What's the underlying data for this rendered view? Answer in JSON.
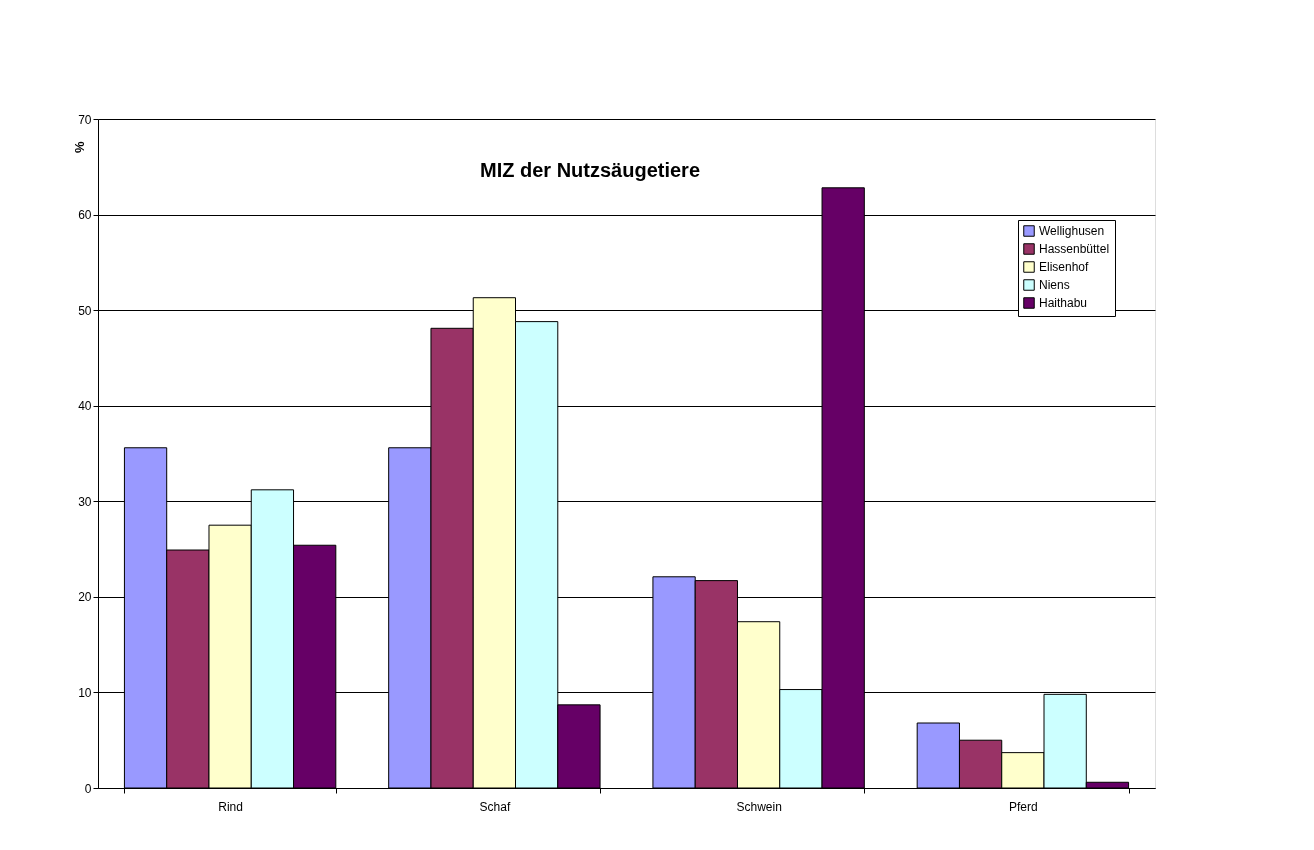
{
  "chart_data": {
    "type": "bar",
    "title": "MIZ der Nutzsäugetiere",
    "ylabel": "%",
    "categories": [
      "Rind",
      "Schaf",
      "Schwein",
      "Pferd"
    ],
    "series": [
      {
        "name": "Wellighusen",
        "color": "#9999ff",
        "values": [
          35.6,
          35.6,
          22.1,
          6.8
        ]
      },
      {
        "name": "Hassenbüttel",
        "color": "#993366",
        "values": [
          24.9,
          48.1,
          21.7,
          5.0
        ]
      },
      {
        "name": "Elisenhof",
        "color": "#ffffcc",
        "values": [
          27.5,
          51.3,
          17.4,
          3.7
        ]
      },
      {
        "name": "Niens",
        "color": "#ccffff",
        "values": [
          31.2,
          48.8,
          10.3,
          9.8
        ]
      },
      {
        "name": "Haithabu",
        "color": "#660066",
        "values": [
          25.4,
          8.7,
          62.8,
          0.6
        ]
      }
    ],
    "ylim": [
      0,
      70
    ],
    "yticks": [
      0,
      10,
      20,
      30,
      40,
      50,
      60,
      70
    ],
    "grid": "y",
    "legend": "right"
  }
}
